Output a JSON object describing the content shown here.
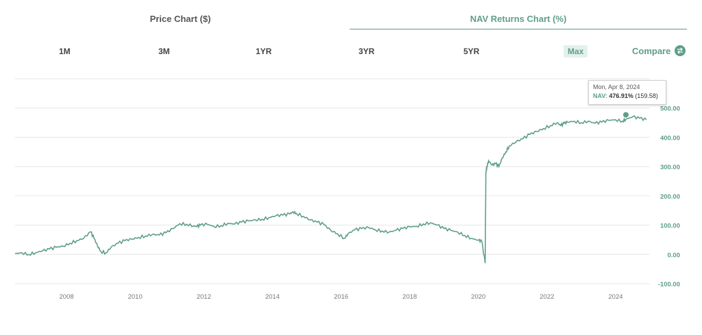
{
  "tabs": {
    "price_label": "Price Chart ($)",
    "nav_label": "NAV Returns Chart (%)"
  },
  "ranges": [
    "1M",
    "3M",
    "1YR",
    "3YR",
    "5YR",
    "Max"
  ],
  "active_range": "Max",
  "compare_label": "Compare",
  "tooltip": {
    "date": "Mon, Apr 8, 2024",
    "label": "NAV:",
    "value": "476.91%",
    "extra": "(159.58)"
  },
  "colors": {
    "accent": "#5f9e88",
    "line": "#5f9e88",
    "grid": "#e6e6e6",
    "axis_text": "#777777"
  },
  "chart_data": {
    "type": "line",
    "series": [
      {
        "values_x_year": [
          2006.5,
          2006.7,
          2006.9,
          2007.1,
          2007.3,
          2007.5,
          2007.7,
          2007.9,
          2008.1,
          2008.3,
          2008.5,
          2008.7,
          2008.8,
          2008.9,
          2009.0,
          2009.15,
          2009.3,
          2009.5,
          2009.7,
          2009.9,
          2010.1,
          2010.3,
          2010.5,
          2010.7,
          2010.9,
          2011.1,
          2011.3,
          2011.5,
          2011.7,
          2011.8,
          2011.9,
          2012.1,
          2012.3,
          2012.5,
          2012.7,
          2012.9,
          2013.1,
          2013.3,
          2013.5,
          2013.7,
          2013.9,
          2014.1,
          2014.3,
          2014.5,
          2014.6,
          2014.7,
          2014.9,
          2015.1,
          2015.3,
          2015.5,
          2015.7,
          2015.9,
          2016.1,
          2016.2,
          2016.4,
          2016.6,
          2016.8,
          2017.0,
          2017.2,
          2017.4,
          2017.6,
          2017.8,
          2018.0,
          2018.2,
          2018.4,
          2018.6,
          2018.8,
          2019.0,
          2019.2,
          2019.4,
          2019.6,
          2019.8,
          2020.0,
          2020.1,
          2020.2,
          2020.22,
          2020.25,
          2020.3,
          2020.4,
          2020.5,
          2020.6,
          2020.7,
          2020.8,
          2020.9,
          2021.1,
          2021.3,
          2021.5,
          2021.7,
          2021.9,
          2022.1,
          2022.3,
          2022.4,
          2022.5,
          2022.6,
          2022.8,
          2023.0,
          2023.2,
          2023.4,
          2023.6,
          2023.8,
          2024.0,
          2024.2,
          2024.3,
          2024.5,
          2024.7,
          2024.9
        ],
        "values": [
          3,
          5,
          0,
          6,
          12,
          18,
          24,
          28,
          38,
          47,
          55,
          77,
          55,
          30,
          10,
          5,
          25,
          38,
          47,
          52,
          58,
          63,
          68,
          66,
          74,
          88,
          105,
          103,
          97,
          95,
          100,
          103,
          95,
          98,
          106,
          104,
          110,
          114,
          118,
          120,
          126,
          132,
          134,
          138,
          145,
          140,
          130,
          118,
          110,
          102,
          82,
          70,
          55,
          70,
          84,
          88,
          92,
          84,
          80,
          76,
          82,
          88,
          94,
          96,
          104,
          108,
          100,
          88,
          82,
          76,
          65,
          55,
          48,
          45,
          -30,
          280,
          300,
          320,
          305,
          310,
          300,
          330,
          350,
          370,
          385,
          395,
          410,
          420,
          430,
          440,
          450,
          440,
          448,
          452,
          455,
          450,
          455,
          448,
          452,
          458,
          460,
          455,
          462,
          470,
          465,
          460
        ]
      }
    ],
    "x_ticks": [
      "2008",
      "2010",
      "2012",
      "2014",
      "2016",
      "2018",
      "2020",
      "2022",
      "2024"
    ],
    "y_ticks": [
      "-100.00",
      "0.00",
      "100.00",
      "200.00",
      "300.00",
      "400.00",
      "500.00"
    ],
    "ylim": [
      -100,
      600
    ],
    "xlim": [
      2006.5,
      2025.0
    ],
    "grid": true
  }
}
